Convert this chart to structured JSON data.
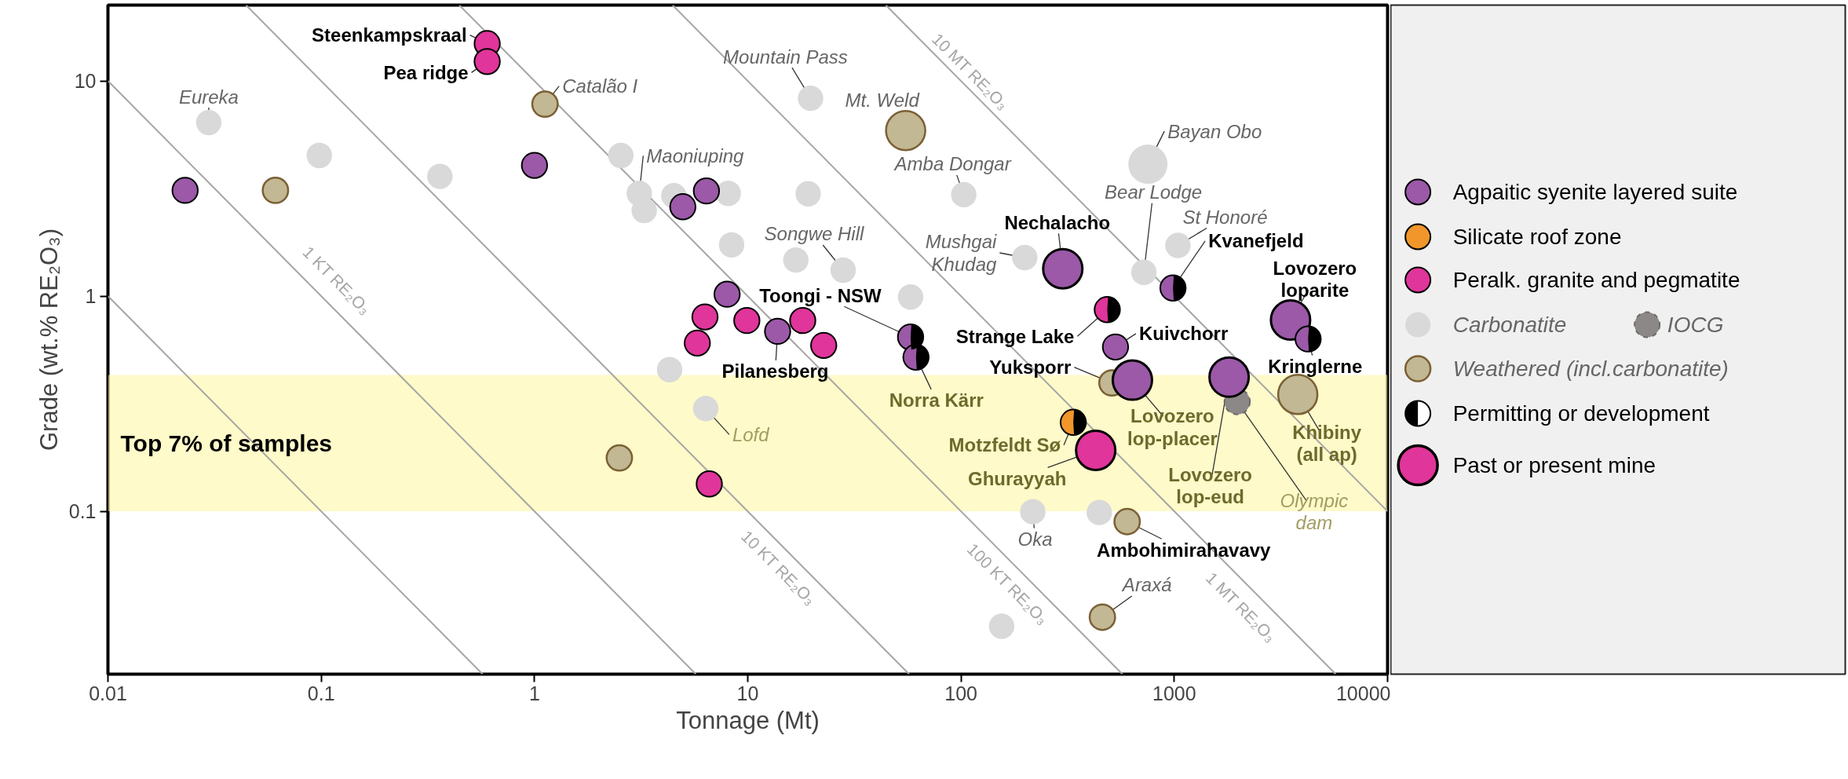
{
  "chart_data": {
    "type": "bubble",
    "xlabel": "Tonnage (Mt)",
    "ylabel": "Grade (wt.% RE₂O₃)",
    "xlim": [
      0.01,
      10000
    ],
    "ylim": [
      0.0175,
      22.5
    ],
    "xticks": [
      0.01,
      0.1,
      1,
      10,
      100,
      1000,
      10000
    ],
    "yticks": [
      0.1,
      1,
      10
    ],
    "log": "xy",
    "grid": false,
    "legend": "right",
    "bands": [
      {
        "axis": "y",
        "from": 0.1,
        "to": 0.43,
        "label": "Top 7% of samples",
        "color": "#fff59d"
      }
    ],
    "series": [
      {
        "name": "Agpaitic syenite layered suite",
        "color": "#9b59a8",
        "x": [
          0.023,
          1.0,
          4.96,
          6.4,
          8.0,
          13.8,
          58,
          61.5,
          300,
          986,
          530,
          636,
          1807,
          3508,
          4240
        ],
        "values": [
          3.1,
          4.05,
          2.6,
          3.08,
          1.02,
          0.686,
          0.645,
          0.52,
          1.34,
          1.09,
          0.58,
          0.407,
          0.42,
          0.774,
          0.632
        ],
        "sizes": [
          0.42,
          0.42,
          0.42,
          0.42,
          0.42,
          0.42,
          0.42,
          0.42,
          1,
          0.42,
          0.42,
          1,
          1,
          1,
          0.42
        ]
      },
      {
        "name": "Silicate roof zone",
        "color": "#f0962a",
        "x": [
          336
        ],
        "values": [
          0.259
        ],
        "sizes": [
          0.42
        ]
      },
      {
        "name": "Peralk. granite and pegmatite",
        "color": "#e0359a",
        "x": [
          0.6,
          0.6,
          6.3,
          5.8,
          9.9,
          18.1,
          22.7,
          485,
          6.6,
          428
        ],
        "values": [
          14.9,
          12.3,
          0.8,
          0.605,
          0.77,
          0.77,
          0.59,
          0.865,
          0.134,
          0.192
        ],
        "sizes": [
          0.42,
          0.42,
          0.42,
          0.42,
          0.42,
          0.42,
          0.42,
          0.42,
          0.42,
          1
        ]
      },
      {
        "name": "Carbonatite",
        "color": "#d9d9d9",
        "x": [
          0.0297,
          0.098,
          0.36,
          2.54,
          3.1,
          3.27,
          4.5,
          8.1,
          8.4,
          16.8,
          19.2,
          19.7,
          103,
          28,
          58,
          199,
          720,
          1040,
          752,
          4.3,
          6.35,
          217,
          445,
          155
        ],
        "values": [
          6.4,
          4.5,
          3.6,
          4.5,
          3.0,
          2.5,
          2.93,
          3.0,
          1.73,
          1.47,
          2.99,
          8.3,
          2.96,
          1.32,
          0.99,
          1.51,
          1.29,
          1.72,
          4.1,
          0.455,
          0.3,
          0.0995,
          0.0987,
          0.0292
        ],
        "sizes": [
          0.42,
          0.42,
          0.42,
          0.42,
          0.42,
          0.42,
          0.42,
          0.42,
          0.42,
          0.42,
          0.42,
          0.42,
          0.42,
          0.42,
          0.42,
          0.42,
          0.42,
          0.42,
          1,
          0.42,
          0.42,
          0.42,
          0.42,
          0.42
        ]
      },
      {
        "name": "IOCG",
        "color": "#8c8888",
        "x": [
          1972
        ],
        "values": [
          0.323
        ],
        "sizes": [
          0.42
        ]
      },
      {
        "name": "Weathered (incl.carbonatite)",
        "color": "#c2b893",
        "x": [
          1.12,
          0.061,
          55,
          2.5,
          510,
          3793,
          601,
          460
        ],
        "values": [
          7.8,
          3.1,
          5.88,
          0.177,
          0.395,
          0.349,
          0.0895,
          0.0322
        ],
        "sizes": [
          0.42,
          0.42,
          1,
          0.42,
          0.42,
          1,
          0.42,
          0.42
        ]
      },
      {
        "name": "Permitting or development",
        "color": "#000000",
        "x": [
          58,
          61.5,
          986,
          485,
          4240,
          336
        ],
        "values": [
          0.645,
          0.52,
          1.09,
          0.865,
          0.632,
          0.259
        ]
      },
      {
        "type": "line",
        "color": "#a6a6a6",
        "x": [
          0.01,
          0.571
        ],
        "values": [
          1,
          0.0175
        ]
      },
      {
        "type": "line",
        "color": "#a6a6a6",
        "x": [
          0.01,
          5.71
        ],
        "values": [
          10,
          0.0175
        ]
      },
      {
        "type": "line",
        "color": "#a6a6a6",
        "x": [
          0.0444,
          57.1
        ],
        "values": [
          22.5,
          0.0175
        ]
      },
      {
        "type": "line",
        "color": "#a6a6a6",
        "x": [
          0.444,
          571
        ],
        "values": [
          22.5,
          0.0175
        ]
      },
      {
        "type": "line",
        "color": "#a6a6a6",
        "x": [
          4.44,
          5714
        ],
        "values": [
          22.5,
          0.0175
        ]
      },
      {
        "type": "line",
        "color": "#a6a6a6",
        "x": [
          44.4,
          10000
        ],
        "values": [
          22.5,
          0.1
        ]
      }
    ],
    "annotations": [
      {
        "text": "Steenkampskraal",
        "x": 0.6,
        "y": 14.9
      },
      {
        "text": "Pea ridge",
        "x": 0.6,
        "y": 12.3
      },
      {
        "text": "Catalão I",
        "x": 1.12,
        "y": 7.8
      },
      {
        "text": "Eureka",
        "x": 0.0297,
        "y": 6.4
      },
      {
        "text": "Maoniuping",
        "x": 3.1,
        "y": 3.0
      },
      {
        "text": "Songwe Hill",
        "x": 28,
        "y": 1.32
      },
      {
        "text": "Mountain Pass",
        "x": 19.7,
        "y": 8.3
      },
      {
        "text": "Mt. Weld",
        "x": 55,
        "y": 5.88
      },
      {
        "text": "Amba Dongar",
        "x": 103,
        "y": 2.96
      },
      {
        "text": "Bayan Obo",
        "x": 752,
        "y": 4.1
      },
      {
        "text": "Bear Lodge",
        "x": 720,
        "y": 1.29
      },
      {
        "text": "St Honoré",
        "x": 1040,
        "y": 1.72
      },
      {
        "text": "Mushgai\nKhudag",
        "x": 199,
        "y": 1.51
      },
      {
        "text": "Nechalacho",
        "x": 300,
        "y": 1.34
      },
      {
        "text": "Kvanefjeld",
        "x": 986,
        "y": 1.09
      },
      {
        "text": "Lovozero\nloparite",
        "x": 3508,
        "y": 0.774
      },
      {
        "text": "Strange Lake",
        "x": 485,
        "y": 0.865
      },
      {
        "text": "Toongi - NSW",
        "x": 58,
        "y": 0.645
      },
      {
        "text": "Kuivchorr",
        "x": 530,
        "y": 0.58
      },
      {
        "text": "Kringlerne",
        "x": 4240,
        "y": 0.632
      },
      {
        "text": "Yuksporr",
        "x": 510,
        "y": 0.395
      },
      {
        "text": "Pilanesberg",
        "x": 13.8,
        "y": 0.686
      },
      {
        "text": "Norra Kärr",
        "x": 61.5,
        "y": 0.52
      },
      {
        "text": "Lovozero\nlop-placer",
        "x": 636,
        "y": 0.407
      },
      {
        "text": "Motzfeldt Sø",
        "x": 336,
        "y": 0.259
      },
      {
        "text": "Ghurayyah",
        "x": 428,
        "y": 0.192
      },
      {
        "text": "Lovozero\nlop-eud",
        "x": 1807,
        "y": 0.42
      },
      {
        "text": "Khibiny\n(all ap)",
        "x": 3793,
        "y": 0.349
      },
      {
        "text": "Olympic\ndam",
        "x": 1972,
        "y": 0.323
      },
      {
        "text": "Oka",
        "x": 217,
        "y": 0.0995
      },
      {
        "text": "Ambohimirahavavy",
        "x": 601,
        "y": 0.0895
      },
      {
        "text": "Araxá",
        "x": 460,
        "y": 0.0322
      },
      {
        "text": "Lofd",
        "x": 6.35,
        "y": 0.3
      },
      {
        "text": "1 KT RE₂O₃",
        "x": 0.1,
        "y": 1
      },
      {
        "text": "10 KT RE₂O₃",
        "x": 16,
        "y": 0.0625
      },
      {
        "text": "100 KT RE₂O₃",
        "x": 190,
        "y": 0.0526
      },
      {
        "text": "1 MT RE₂O₃",
        "x": 2400,
        "y": 0.0417
      },
      {
        "text": "10 MT RE₂O₃",
        "x": 100,
        "y": 10
      }
    ],
    "size_legend": [
      {
        "value": 1,
        "label": "Past or present mine"
      }
    ]
  }
}
